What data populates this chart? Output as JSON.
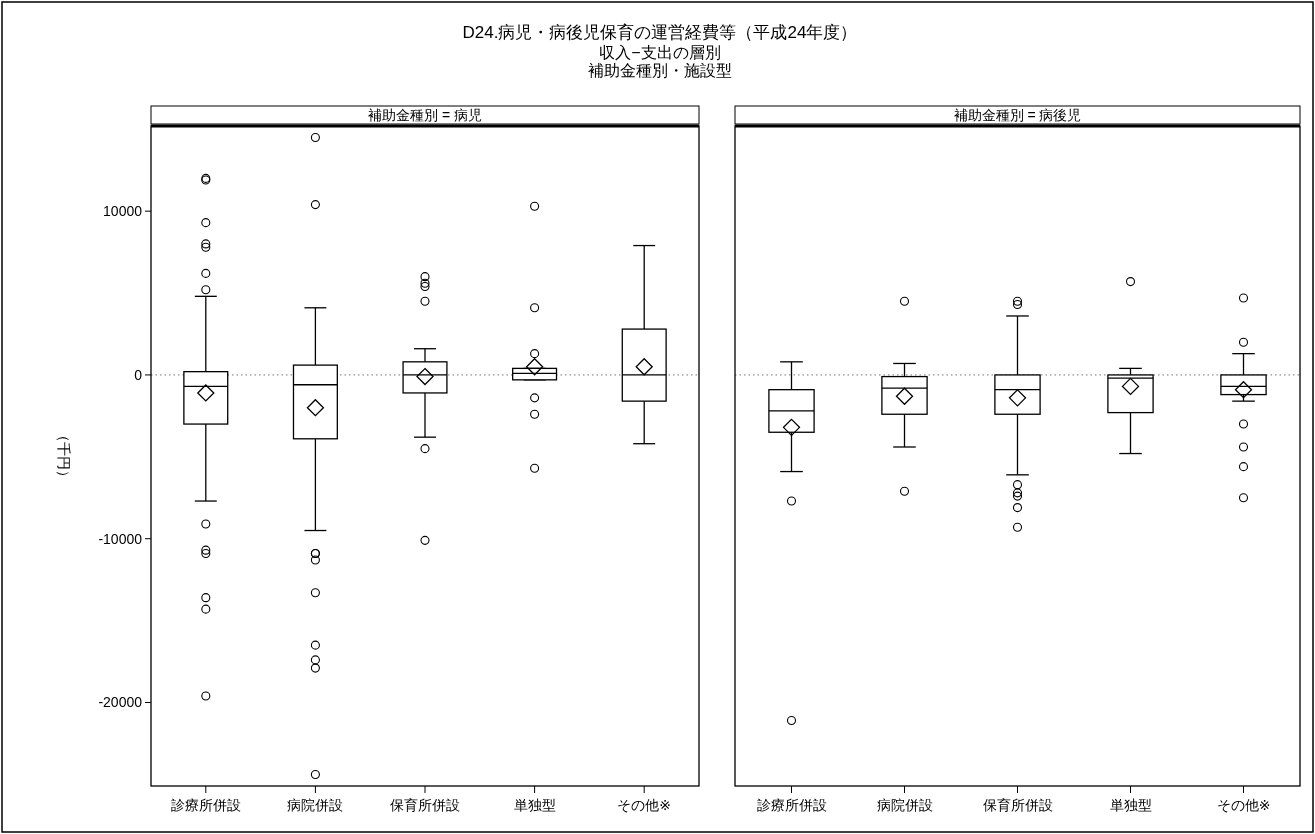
{
  "chart_data": [
    {
      "type": "box",
      "title": "D24.病児・病後児保育の運営経費等（平成24年度）",
      "subtitle": [
        "収入−支出の層別",
        "補助金種別・施設型"
      ],
      "ylabel": "（千円）",
      "annotations": [
        "補助金種別 = 病児"
      ],
      "categories": [
        "診療所併設",
        "病院併設",
        "保育所併設",
        "単独型",
        "その他※"
      ],
      "boxes": [
        {
          "low": -7700,
          "q1": -3000,
          "median": -700,
          "q3": 200,
          "high": 4800,
          "mean": -1100,
          "outliers": [
            12000,
            11900,
            9300,
            8000,
            7800,
            6200,
            5200,
            -9100,
            -10700,
            -10900,
            -13600,
            -14300,
            -19600
          ]
        },
        {
          "low": -9500,
          "q1": -3900,
          "median": -600,
          "q3": 600,
          "high": 4100,
          "mean": -2000,
          "outliers": [
            14500,
            10400,
            -10900,
            -10900,
            -11300,
            -13300,
            -16500,
            -17400,
            -17900,
            -24400
          ]
        },
        {
          "low": -3800,
          "q1": -1100,
          "median": 0,
          "q3": 800,
          "high": 1600,
          "mean": -100,
          "outliers": [
            6000,
            5600,
            5400,
            4500,
            -4500,
            -10100
          ]
        },
        {
          "low": -300,
          "q1": -300,
          "median": 100,
          "q3": 400,
          "high": 400,
          "mean": 500,
          "outliers": [
            10300,
            4100,
            1300,
            -1400,
            -2400,
            -5700
          ]
        },
        {
          "low": -4200,
          "q1": -1600,
          "median": 0,
          "q3": 2800,
          "high": 7900,
          "mean": 500
        }
      ],
      "ylim": [
        -25100,
        15200
      ],
      "yticks": [
        -20000,
        -10000,
        0,
        10000
      ],
      "grid": false,
      "marker": "diamond",
      "ref_lines": [
        {
          "axis": "y",
          "value": 0,
          "line_style": "dotted"
        }
      ]
    },
    {
      "type": "box",
      "annotations": [
        "補助金種別 = 病後児"
      ],
      "categories": [
        "診療所併設",
        "病院併設",
        "保育所併設",
        "単独型",
        "その他※"
      ],
      "boxes": [
        {
          "low": -5900,
          "q1": -3500,
          "median": -2200,
          "q3": -900,
          "high": 800,
          "mean": -3200,
          "outliers": [
            -7700,
            -21100
          ]
        },
        {
          "low": -4400,
          "q1": -2400,
          "median": -800,
          "q3": -100,
          "high": 700,
          "mean": -1300,
          "outliers": [
            4500,
            -7100
          ]
        },
        {
          "low": -6100,
          "q1": -2400,
          "median": -900,
          "q3": 0,
          "high": 3600,
          "mean": -1400,
          "outliers": [
            4500,
            4300,
            -6700,
            -7200,
            -7400,
            -8100,
            -9300
          ]
        },
        {
          "low": -4800,
          "q1": -2300,
          "median": -200,
          "q3": 0,
          "high": 400,
          "mean": -700,
          "outliers": [
            5700
          ]
        },
        {
          "low": -1600,
          "q1": -1200,
          "median": -700,
          "q3": 0,
          "high": 1300,
          "mean": -900,
          "outliers": [
            4700,
            2000,
            -3000,
            -4400,
            -5600,
            -7500
          ]
        }
      ],
      "ylim": [
        -25100,
        15200
      ],
      "yticks": [
        -20000,
        -10000,
        0,
        10000
      ],
      "grid": false,
      "marker": "diamond",
      "tick_labels": "x",
      "ref_lines": [
        {
          "axis": "y",
          "value": 0,
          "line_style": "dotted"
        }
      ]
    }
  ]
}
